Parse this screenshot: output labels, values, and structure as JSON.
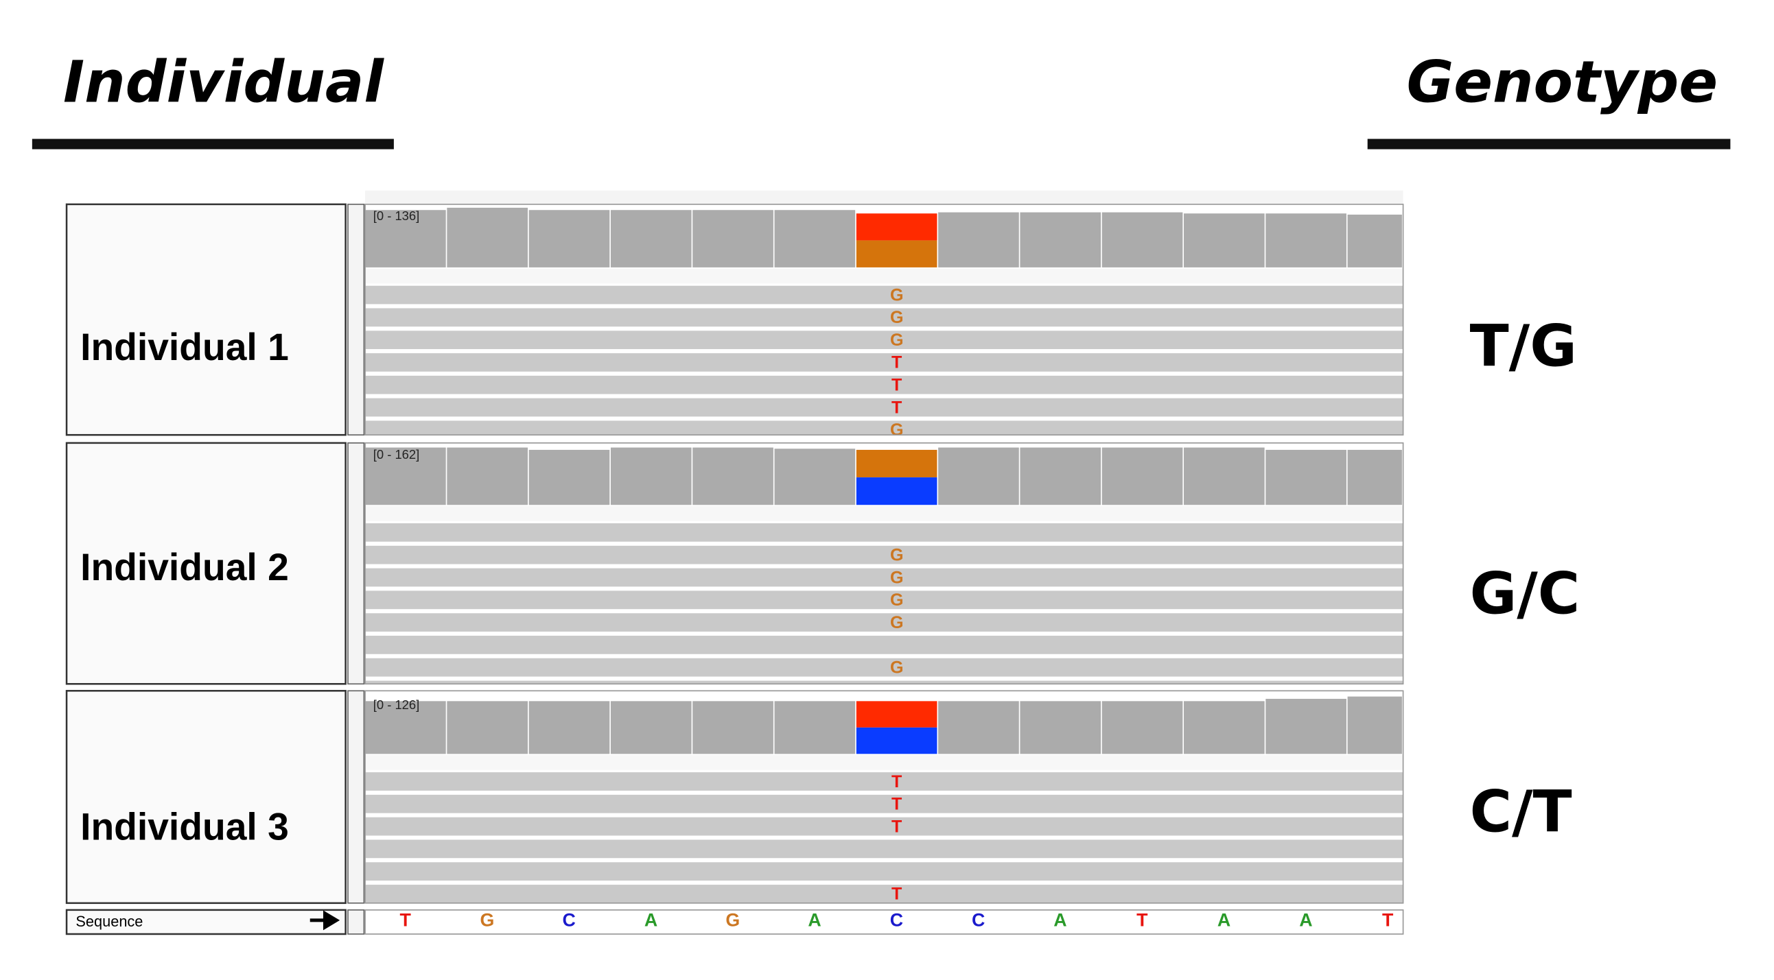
{
  "header": {
    "left_title": "Individual",
    "right_title": "Genotype"
  },
  "base_colors": {
    "A": "#2a9a2a",
    "C": "#1a1acc",
    "G": "#cc7722",
    "T": "#e8150f"
  },
  "panels": [
    {
      "label": "Individual 1",
      "range": "[0 - 136]",
      "genotype": "T/G",
      "reads": [
        "G",
        "G",
        "G",
        "T",
        "T",
        "T",
        "G"
      ],
      "allele_colors": [
        "#ff2a00",
        "#d5740c"
      ]
    },
    {
      "label": "Individual 2",
      "range": "[0 - 162]",
      "genotype": "G/C",
      "reads": [
        null,
        "G",
        "G",
        "G",
        "G",
        null,
        "G"
      ],
      "allele_colors": [
        "#d5740c",
        "#0a3cff"
      ]
    },
    {
      "label": "Individual 3",
      "range": "[0 - 126]",
      "genotype": "C/T",
      "reads": [
        "T",
        "T",
        "T",
        null,
        null,
        "T"
      ],
      "allele_colors": [
        "#ff2a00",
        "#0a3cff"
      ]
    }
  ],
  "sequence": {
    "label": "Sequence",
    "bases": [
      "T",
      "G",
      "C",
      "A",
      "G",
      "A",
      "C",
      "C",
      "A",
      "T",
      "A",
      "A",
      "T"
    ]
  }
}
